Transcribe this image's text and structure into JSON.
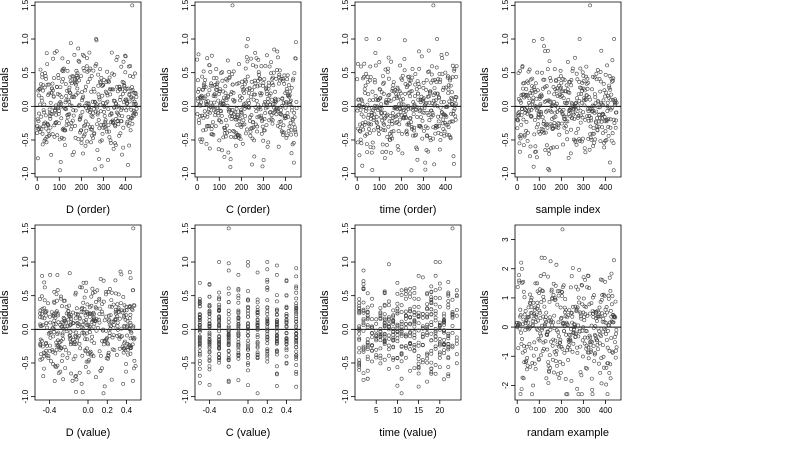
{
  "chart_data": [
    {
      "type": "scatter",
      "xlabel": "D (order)",
      "ylabel": "residuals",
      "xlim": [
        -10,
        470
      ],
      "ylim": [
        -1.05,
        1.55
      ],
      "xticks": [
        0,
        100,
        200,
        300,
        400
      ],
      "yticks": [
        -1.0,
        -0.5,
        0.0,
        0.5,
        1.0,
        1.5
      ],
      "xtick_labels": [
        "0",
        "100",
        "200",
        "300",
        "400"
      ],
      "ytick_labels": [
        "-1.0",
        "-0.5",
        "0.0",
        "0.5",
        "1.0",
        "1.5"
      ],
      "hline": 0,
      "n_points": 450,
      "x_range": [
        0,
        450
      ],
      "mode": "order",
      "y_sd": 0.35,
      "y_range": [
        -0.95,
        1.0
      ],
      "outlier": [
        430,
        1.5
      ],
      "seed": 11
    },
    {
      "type": "scatter",
      "xlabel": "C (order)",
      "ylabel": "residuals",
      "xlim": [
        -10,
        470
      ],
      "ylim": [
        -1.05,
        1.55
      ],
      "xticks": [
        0,
        100,
        200,
        300,
        400
      ],
      "yticks": [
        -1.0,
        -0.5,
        0.0,
        0.5,
        1.0,
        1.5
      ],
      "xtick_labels": [
        "0",
        "100",
        "200",
        "300",
        "400"
      ],
      "ytick_labels": [
        "-1.0",
        "-0.5",
        "0.0",
        "0.5",
        "1.0",
        "1.5"
      ],
      "hline": 0,
      "n_points": 450,
      "x_range": [
        0,
        450
      ],
      "mode": "order",
      "y_sd": 0.35,
      "y_range": [
        -0.95,
        1.0
      ],
      "outlier": [
        160,
        1.5
      ],
      "seed": 23
    },
    {
      "type": "scatter",
      "xlabel": "time (order)",
      "ylabel": "residuals",
      "xlim": [
        -10,
        470
      ],
      "ylim": [
        -1.05,
        1.55
      ],
      "xticks": [
        0,
        100,
        200,
        300,
        400
      ],
      "yticks": [
        -1.0,
        -0.5,
        0.0,
        0.5,
        1.0,
        1.5
      ],
      "xtick_labels": [
        "0",
        "100",
        "200",
        "300",
        "400"
      ],
      "ytick_labels": [
        "-1.0",
        "-0.5",
        "0.0",
        "0.5",
        "1.0",
        "1.5"
      ],
      "hline": 0,
      "n_points": 450,
      "x_range": [
        0,
        450
      ],
      "mode": "order",
      "y_sd": 0.35,
      "y_range": [
        -0.95,
        1.0
      ],
      "outlier": [
        345,
        1.5
      ],
      "seed": 37
    },
    {
      "type": "scatter",
      "xlabel": "sample index",
      "ylabel": "residuals",
      "xlim": [
        -10,
        470
      ],
      "ylim": [
        -1.05,
        1.55
      ],
      "xticks": [
        0,
        100,
        200,
        300,
        400
      ],
      "yticks": [
        -1.0,
        -0.5,
        0.0,
        0.5,
        1.0,
        1.5
      ],
      "xtick_labels": [
        "0",
        "100",
        "200",
        "300",
        "400"
      ],
      "ytick_labels": [
        "-1.0",
        "-0.5",
        "0.0",
        "0.5",
        "1.0",
        "1.5"
      ],
      "hline": 0,
      "n_points": 450,
      "x_range": [
        0,
        450
      ],
      "mode": "order",
      "y_sd": 0.35,
      "y_range": [
        -0.95,
        1.0
      ],
      "outlier": [
        330,
        1.5
      ],
      "seed": 41
    },
    {
      "type": "scatter",
      "xlabel": "D (value)",
      "ylabel": "residuals",
      "xlim": [
        -0.55,
        0.55
      ],
      "ylim": [
        -1.05,
        1.55
      ],
      "xticks": [
        -0.4,
        0.0,
        0.2,
        0.4
      ],
      "yticks": [
        -1.0,
        -0.5,
        0.0,
        0.5,
        1.0,
        1.5
      ],
      "xtick_labels": [
        "-0.4",
        "0.0",
        "0.2",
        "0.4"
      ],
      "ytick_labels": [
        "-1.0",
        "-0.5",
        "0.0",
        "0.5",
        "1.0",
        "1.5"
      ],
      "hline": 0,
      "n_points": 450,
      "x_range": [
        -0.5,
        0.5
      ],
      "mode": "value",
      "y_sd": 0.35,
      "y_range": [
        -0.95,
        1.0
      ],
      "outlier": [
        0.47,
        1.5
      ],
      "seed": 53
    },
    {
      "type": "scatter",
      "xlabel": "C (value)",
      "ylabel": "residuals",
      "xlim": [
        -0.55,
        0.55
      ],
      "ylim": [
        -1.05,
        1.55
      ],
      "xticks": [
        -0.4,
        0.0,
        0.2,
        0.4
      ],
      "yticks": [
        -1.0,
        -0.5,
        0.0,
        0.5,
        1.0,
        1.5
      ],
      "xtick_labels": [
        "-0.4",
        "0.0",
        "0.2",
        "0.4"
      ],
      "ytick_labels": [
        "-1.0",
        "-0.5",
        "0.0",
        "0.5",
        "1.0",
        "1.5"
      ],
      "hline": 0,
      "n_points": 450,
      "x_range": [
        -0.5,
        0.5
      ],
      "mode": "discrete",
      "levels": [
        -0.5,
        -0.4,
        -0.3,
        -0.2,
        -0.1,
        0.0,
        0.1,
        0.2,
        0.3,
        0.4,
        0.5
      ],
      "y_sd": 0.35,
      "y_range": [
        -0.95,
        1.0
      ],
      "outlier": [
        -0.2,
        1.5
      ],
      "seed": 67
    },
    {
      "type": "scatter",
      "xlabel": "time (value)",
      "ylabel": "residuals",
      "xlim": [
        0,
        25
      ],
      "ylim": [
        -1.05,
        1.55
      ],
      "xticks": [
        5,
        10,
        15,
        20
      ],
      "yticks": [
        -1.0,
        -0.5,
        0.0,
        0.5,
        1.0,
        1.5
      ],
      "xtick_labels": [
        "5",
        "10",
        "15",
        "20"
      ],
      "ytick_labels": [
        "-1.0",
        "-0.5",
        "0.0",
        "0.5",
        "1.0",
        "1.5"
      ],
      "hline": 0,
      "n_points": 450,
      "x_range": [
        1,
        24
      ],
      "mode": "discrete",
      "levels": [
        1,
        2,
        3,
        4,
        5,
        6,
        7,
        8,
        9,
        10,
        11,
        12,
        13,
        14,
        15,
        16,
        17,
        18,
        19,
        20,
        21,
        22,
        23,
        24
      ],
      "y_sd": 0.35,
      "y_range": [
        -0.95,
        1.0
      ],
      "outlier": [
        23,
        1.5
      ],
      "seed": 71
    },
    {
      "type": "scatter",
      "xlabel": "randam example",
      "ylabel": "residuals",
      "xlim": [
        -10,
        470
      ],
      "ylim": [
        -2.5,
        3.5
      ],
      "xticks": [
        0,
        100,
        200,
        300,
        400
      ],
      "yticks": [
        -2,
        -1,
        0,
        1,
        2,
        3
      ],
      "xtick_labels": [
        "0",
        "100",
        "200",
        "300",
        "400"
      ],
      "ytick_labels": [
        "-2",
        "-1",
        "0",
        "1",
        "2",
        "3"
      ],
      "hline": 0,
      "n_points": 450,
      "x_range": [
        0,
        450
      ],
      "mode": "order",
      "y_sd": 0.95,
      "y_range": [
        -2.3,
        2.6
      ],
      "outlier": [
        205,
        3.35
      ],
      "seed": 89
    }
  ]
}
